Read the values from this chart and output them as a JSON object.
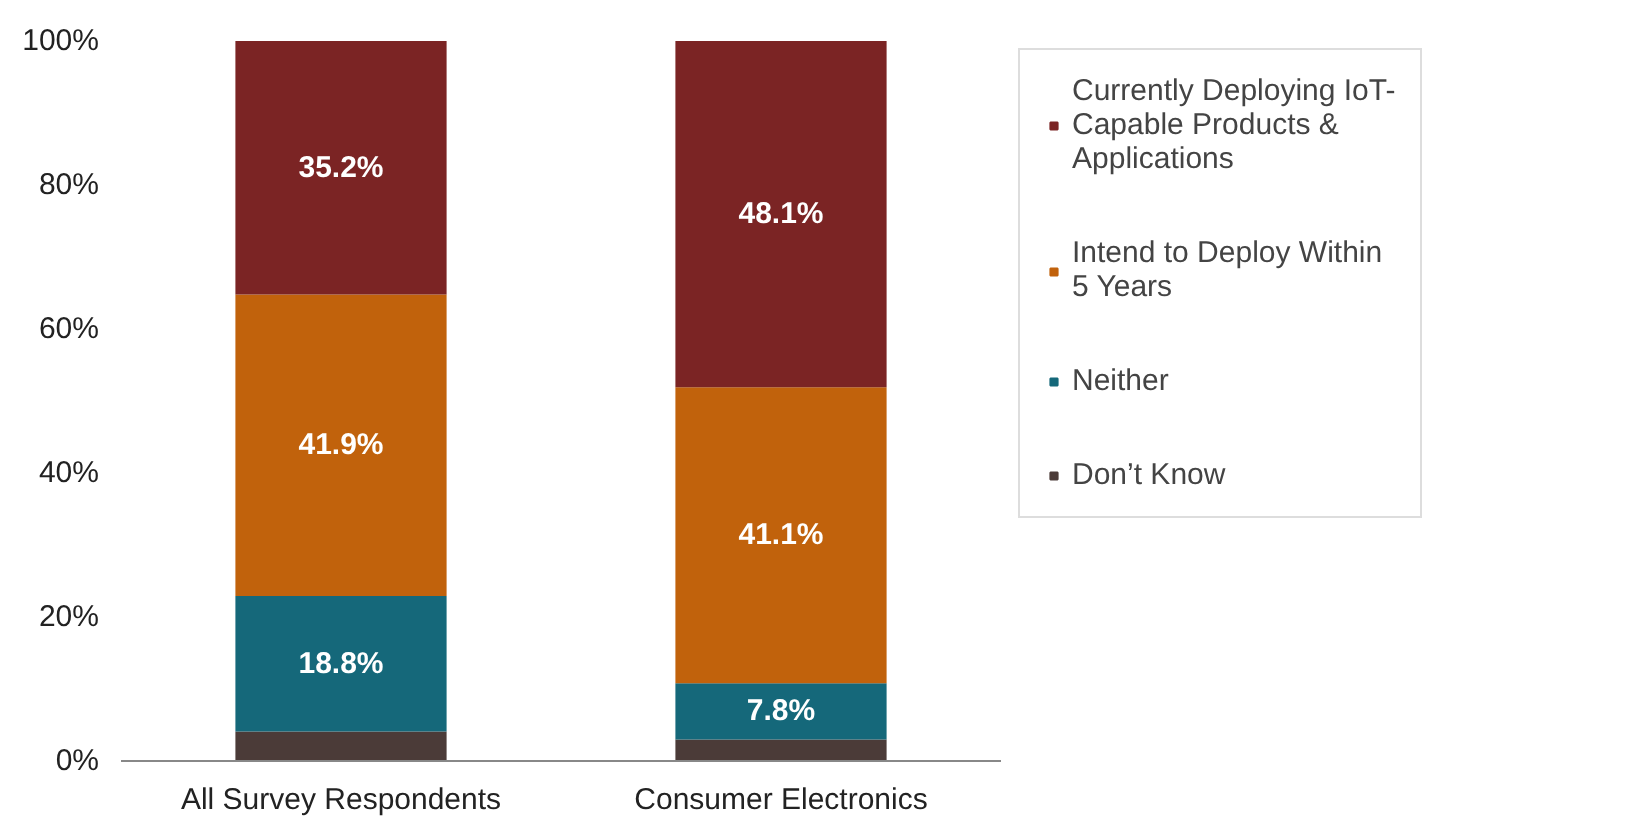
{
  "chart_data": {
    "type": "bar",
    "stacked": true,
    "categories": [
      "All Survey Respondents",
      "Consumer Electronics"
    ],
    "series": [
      {
        "name": "Don’t Know",
        "color": "#4b3b38",
        "values": [
          4.1,
          3.0
        ],
        "value_labels": [
          null,
          null
        ]
      },
      {
        "name": "Neither",
        "color": "#15687a",
        "values": [
          18.8,
          7.8
        ],
        "value_labels": [
          "18.8%",
          "7.8%"
        ]
      },
      {
        "name": "Intend to Deploy Within 5 Years",
        "color": "#c1620c",
        "values": [
          41.9,
          41.1
        ],
        "value_labels": [
          "41.9%",
          "41.1%"
        ]
      },
      {
        "name": "Currently Deploying IoT-Capable Products & Applications",
        "color": "#7b2424",
        "values": [
          35.2,
          48.1
        ],
        "value_labels": [
          "35.2%",
          "48.1%"
        ]
      }
    ],
    "ylim": [
      0,
      100
    ],
    "yticks": [
      {
        "value": 0,
        "label": "0%"
      },
      {
        "value": 20,
        "label": "20%"
      },
      {
        "value": 40,
        "label": "40%"
      },
      {
        "value": 60,
        "label": "60%"
      },
      {
        "value": 80,
        "label": "80%"
      },
      {
        "value": 100,
        "label": "100%"
      }
    ],
    "grid": false,
    "legend": "right"
  }
}
